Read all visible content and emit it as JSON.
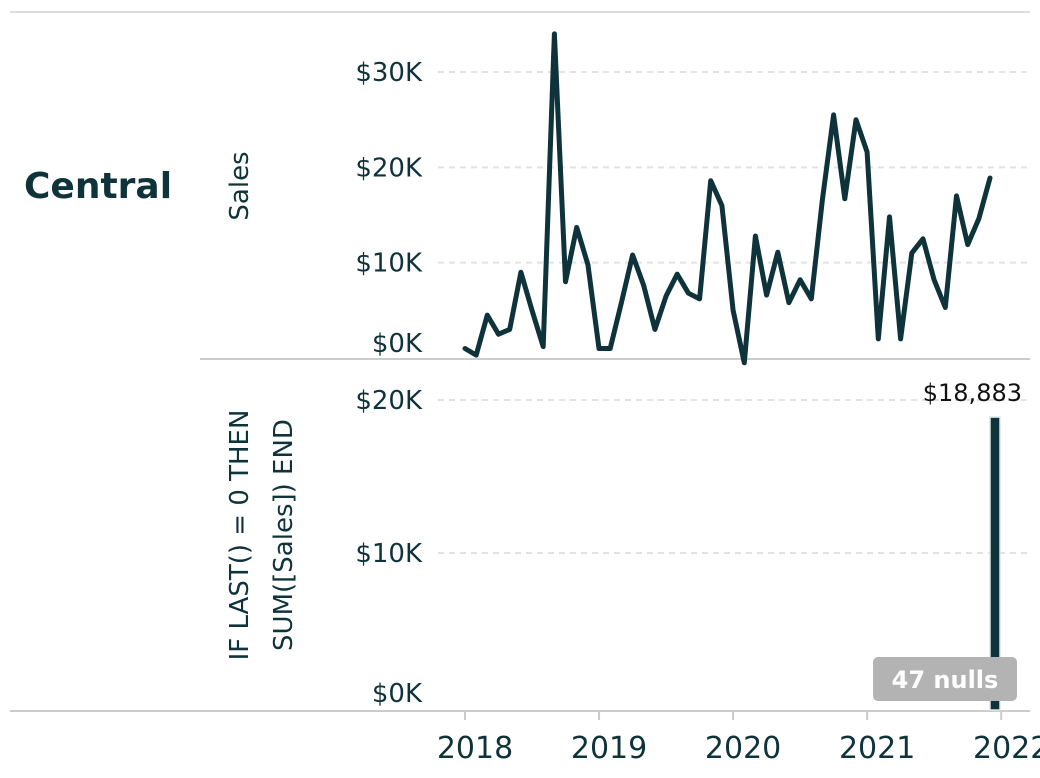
{
  "row_header": "Central",
  "colors": {
    "line": "#0f333a",
    "bar": "#0f333a",
    "grid": "#e2e2e2",
    "nulls_badge": "#b3b3b3"
  },
  "chart_data": [
    {
      "type": "line",
      "ylabel": "Sales",
      "xlabel": "",
      "ylim": [
        0,
        35000
      ],
      "yticks": [
        0,
        10000,
        20000,
        30000
      ],
      "ytick_labels": [
        "$0K",
        "$10K",
        "$20K",
        "$30K"
      ],
      "xticks": [
        2018,
        2019,
        2020,
        2021,
        2022
      ],
      "grid": true,
      "series": [
        {
          "x": [
            "2018-01",
            "2018-02",
            "2018-03",
            "2018-04",
            "2018-05",
            "2018-06",
            "2018-07",
            "2018-08",
            "2018-09",
            "2018-10",
            "2018-11",
            "2018-12",
            "2019-01",
            "2019-02",
            "2019-03",
            "2019-04",
            "2019-05",
            "2019-06",
            "2019-07",
            "2019-08",
            "2019-09",
            "2019-10",
            "2019-11",
            "2019-12",
            "2020-01",
            "2020-02",
            "2020-03",
            "2020-04",
            "2020-05",
            "2020-06",
            "2020-07",
            "2020-08",
            "2020-09",
            "2020-10",
            "2020-11",
            "2020-12",
            "2021-01",
            "2021-02",
            "2021-03",
            "2021-04",
            "2021-05",
            "2021-06",
            "2021-07",
            "2021-08",
            "2021-09",
            "2021-10",
            "2021-11",
            "2021-12"
          ],
          "values": [
            1000,
            300,
            4500,
            2500,
            3000,
            9000,
            5000,
            1200,
            34000,
            8000,
            13700,
            9800,
            1000,
            1000,
            5800,
            10800,
            7600,
            3000,
            6500,
            8800,
            6800,
            6200,
            18600,
            16000,
            5000,
            -500,
            12800,
            6600,
            11100,
            5800,
            8200,
            6200,
            16600,
            25500,
            16700,
            25000,
            21600,
            2000,
            14800,
            2000,
            11000,
            12500,
            8200,
            5300,
            17000,
            11900,
            14600,
            18883
          ]
        }
      ]
    },
    {
      "type": "bar",
      "ylabel_lines": [
        "IF LAST() = 0 THEN",
        "SUM([Sales]) END"
      ],
      "ylim": [
        0,
        20000
      ],
      "yticks": [
        0,
        10000,
        20000
      ],
      "ytick_labels": [
        "$0K",
        "$10K",
        "$20K"
      ],
      "xticks": [
        2018,
        2019,
        2020,
        2021,
        2022
      ],
      "xtick_labels": [
        "2018",
        "2019",
        "2020",
        "2021",
        "2022"
      ],
      "grid": true,
      "bars": [
        {
          "x": "2021-12",
          "value": 18883,
          "label": "$18,883"
        }
      ],
      "nulls_indicator": "47 nulls"
    }
  ]
}
